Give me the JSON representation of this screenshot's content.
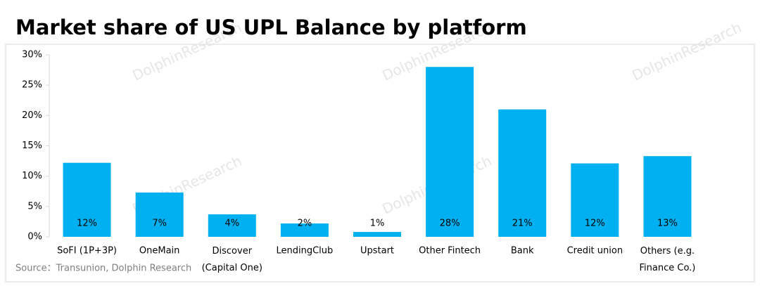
{
  "chart_data": {
    "type": "bar",
    "title": "Market share of US UPL Balance by platform",
    "categories": [
      "SoFI (1P+3P)",
      "OneMain",
      "Discover\n(Capital One)",
      "LendingClub",
      "Upstart",
      "Other Fintech",
      "Bank",
      "Credit union",
      "Others (e.g.\nFinance Co.)"
    ],
    "values": [
      12.2,
      7.3,
      3.7,
      2.2,
      0.8,
      28,
      21,
      12.1,
      13.3
    ],
    "value_labels": [
      "12%",
      "7%",
      "4%",
      "2%",
      "1%",
      "28%",
      "21%",
      "12%",
      "13%"
    ],
    "color": "#00b0f0",
    "ylim": [
      0,
      30
    ],
    "yticks": [
      {
        "value": 0,
        "label": "0%"
      },
      {
        "value": 5,
        "label": "5%"
      },
      {
        "value": 10,
        "label": "10%"
      },
      {
        "value": 15,
        "label": "15%"
      },
      {
        "value": 20,
        "label": "20%"
      },
      {
        "value": 25,
        "label": "25%"
      },
      {
        "value": 30,
        "label": "30%"
      }
    ],
    "grid": false,
    "source": "Source：Transunion, Dolphin Research",
    "watermark": "DolphinResearch"
  }
}
